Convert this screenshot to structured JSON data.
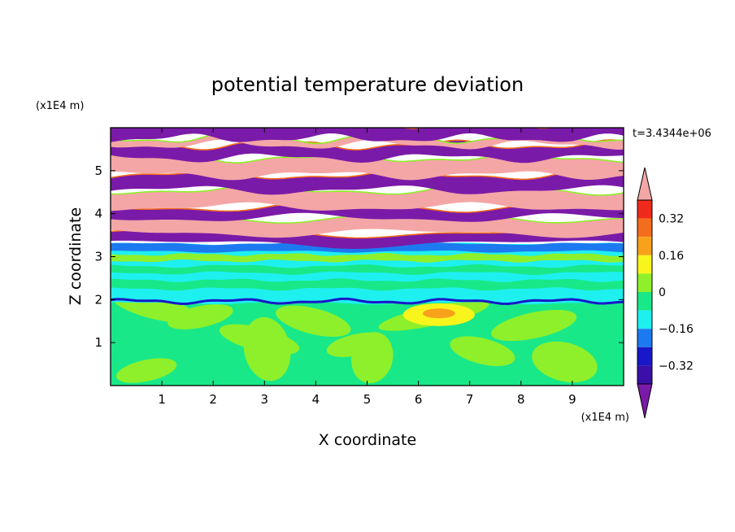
{
  "chart_data": {
    "type": "heatmap",
    "title": "potential temperature deviation",
    "xlabel": "X coordinate",
    "ylabel": "Z coordinate",
    "x_unit": "(x1E4 m)",
    "y_unit": "(x1E4 m)",
    "time_label": "t=3.4344e+06",
    "xlim": [
      0,
      10
    ],
    "ylim": [
      0,
      6
    ],
    "x_ticks": [
      "1",
      "2",
      "3",
      "4",
      "5",
      "6",
      "7",
      "8",
      "9"
    ],
    "y_ticks": [
      "1",
      "2",
      "3",
      "4",
      "5"
    ],
    "colorbar": {
      "tick_labels": [
        "0.32",
        "0.16",
        "0",
        "−0.16",
        "−0.32"
      ],
      "tick_values": [
        0.32,
        0.16,
        0,
        -0.16,
        -0.32
      ],
      "levels_top_to_bottom": [
        {
          "range": "> 0.40",
          "color": "#f4a6a6"
        },
        {
          "range": "0.32 to 0.40",
          "color": "#f02a1a"
        },
        {
          "range": "0.24 to 0.32",
          "color": "#f46d1e"
        },
        {
          "range": "0.16 to 0.24",
          "color": "#f7a21a"
        },
        {
          "range": "0.08 to 0.16",
          "color": "#f8f51c"
        },
        {
          "range": "0 to 0.08",
          "color": "#8ef02a"
        },
        {
          "range": "-0.08 to 0",
          "color": "#19e889"
        },
        {
          "range": "-0.16 to -0.08",
          "color": "#1ef0f0"
        },
        {
          "range": "-0.24 to -0.16",
          "color": "#1b7af0"
        },
        {
          "range": "-0.32 to -0.24",
          "color": "#1818c8"
        },
        {
          "range": "-0.40 to -0.32",
          "color": "#3a10a8"
        },
        {
          "range": "< -0.40",
          "color": "#7a1aa8"
        }
      ]
    },
    "field_description": {
      "stratified_layers": [
        {
          "z": [
            0.0,
            1.9
          ],
          "color": "#19e889",
          "with_patches": "#8ef02a"
        },
        {
          "z": [
            1.9,
            3.3
          ],
          "color": "#1ef0f0",
          "with_bands": "#19e889"
        },
        {
          "z": [
            3.3,
            6.0
          ],
          "alternating": [
            "#7a1aa8",
            "#f4a6a6"
          ]
        }
      ]
    }
  }
}
